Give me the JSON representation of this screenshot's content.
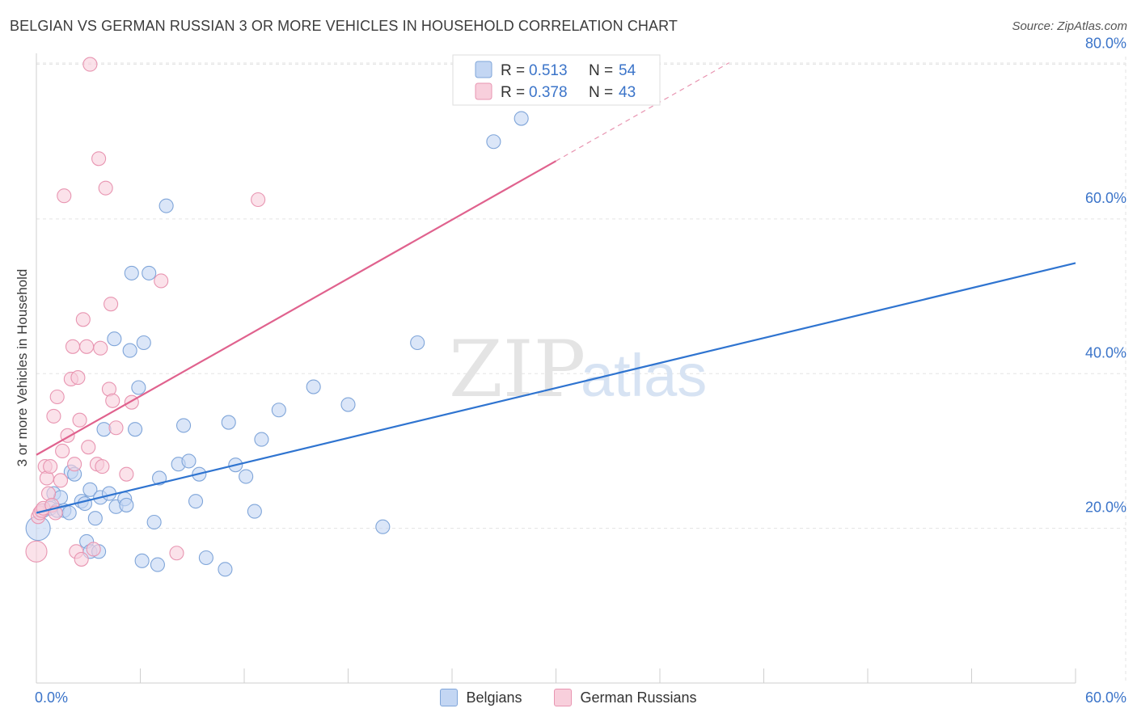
{
  "title": "BELGIAN VS GERMAN RUSSIAN 3 OR MORE VEHICLES IN HOUSEHOLD CORRELATION CHART",
  "source": "Source: ZipAtlas.com",
  "watermark": {
    "zip": "ZIP",
    "atlas": "atlas"
  },
  "colors": {
    "belgians_fill": "#c3d6f3",
    "belgians_stroke": "#7fa5d9",
    "belgians_line": "#2f74d0",
    "german_fill": "#f8cfdc",
    "german_stroke": "#e895b1",
    "german_line": "#e0628e",
    "axis_text": "#3b74c9",
    "grid": "#e3e3e3"
  },
  "legend": [
    {
      "key": "belgians",
      "r_label": "R =",
      "r_value": "0.513",
      "n_label": "N =",
      "n_value": "54"
    },
    {
      "key": "german",
      "r_label": "R =",
      "r_value": "0.378",
      "n_label": "N =",
      "n_value": "43"
    }
  ],
  "chart_data": {
    "type": "scatter",
    "title": "BELGIAN VS GERMAN RUSSIAN 3 OR MORE VEHICLES IN HOUSEHOLD CORRELATION CHART",
    "xlabel": "",
    "ylabel": "3 or more Vehicles in Household",
    "xlim": [
      0,
      60
    ],
    "ylim": [
      0,
      81
    ],
    "x_tick_labels": [
      "0.0%",
      "60.0%"
    ],
    "y_ticks": [
      20,
      40,
      60,
      80
    ],
    "y_tick_labels": [
      "20.0%",
      "40.0%",
      "60.0%",
      "80.0%"
    ],
    "legend_labels": [
      "Belgians",
      "German Russians"
    ],
    "series": [
      {
        "name": "Belgians",
        "points": [
          [
            0.1,
            20.0
          ],
          [
            0.4,
            22.3
          ],
          [
            0.8,
            22.6
          ],
          [
            1.0,
            24.5
          ],
          [
            1.2,
            22.3
          ],
          [
            1.4,
            24.0
          ],
          [
            1.6,
            22.3
          ],
          [
            1.9,
            22.0
          ],
          [
            2.0,
            27.3
          ],
          [
            2.2,
            27.0
          ],
          [
            2.6,
            23.5
          ],
          [
            2.8,
            23.2
          ],
          [
            2.9,
            18.3
          ],
          [
            3.1,
            17.0
          ],
          [
            3.1,
            25.0
          ],
          [
            3.4,
            21.3
          ],
          [
            3.6,
            17.0
          ],
          [
            3.7,
            24.0
          ],
          [
            3.9,
            32.8
          ],
          [
            4.2,
            24.5
          ],
          [
            4.5,
            44.5
          ],
          [
            4.6,
            22.8
          ],
          [
            5.1,
            23.8
          ],
          [
            5.2,
            23.0
          ],
          [
            5.4,
            43.0
          ],
          [
            5.5,
            53.0
          ],
          [
            5.7,
            32.8
          ],
          [
            5.9,
            38.2
          ],
          [
            6.1,
            15.8
          ],
          [
            6.2,
            44.0
          ],
          [
            6.5,
            53.0
          ],
          [
            6.8,
            20.8
          ],
          [
            7.0,
            15.3
          ],
          [
            7.1,
            26.5
          ],
          [
            7.5,
            61.7
          ],
          [
            8.2,
            28.3
          ],
          [
            8.5,
            33.3
          ],
          [
            8.8,
            28.7
          ],
          [
            9.2,
            23.5
          ],
          [
            9.4,
            27.0
          ],
          [
            9.8,
            16.2
          ],
          [
            10.9,
            14.7
          ],
          [
            11.1,
            33.7
          ],
          [
            11.5,
            28.2
          ],
          [
            12.1,
            26.7
          ],
          [
            12.6,
            22.2
          ],
          [
            13.0,
            31.5
          ],
          [
            14.0,
            35.3
          ],
          [
            16.0,
            38.3
          ],
          [
            18.0,
            36.0
          ],
          [
            20.0,
            20.2
          ],
          [
            22.0,
            44.0
          ],
          [
            26.4,
            70.0
          ],
          [
            28.0,
            73.0
          ]
        ]
      },
      {
        "name": "German Russians",
        "points": [
          [
            0.0,
            17.0
          ],
          [
            0.1,
            21.5
          ],
          [
            0.2,
            22.0
          ],
          [
            0.3,
            22.3
          ],
          [
            0.4,
            22.6
          ],
          [
            0.5,
            28.0
          ],
          [
            0.6,
            26.5
          ],
          [
            0.7,
            24.5
          ],
          [
            0.8,
            28.0
          ],
          [
            0.9,
            23.0
          ],
          [
            1.0,
            34.5
          ],
          [
            1.1,
            22.0
          ],
          [
            1.2,
            37.0
          ],
          [
            1.4,
            26.2
          ],
          [
            1.5,
            30.0
          ],
          [
            1.6,
            63.0
          ],
          [
            1.8,
            32.0
          ],
          [
            2.0,
            39.3
          ],
          [
            2.1,
            43.5
          ],
          [
            2.2,
            28.3
          ],
          [
            2.3,
            17.0
          ],
          [
            2.4,
            39.5
          ],
          [
            2.5,
            34.0
          ],
          [
            2.6,
            16.0
          ],
          [
            2.7,
            47.0
          ],
          [
            2.9,
            43.5
          ],
          [
            3.0,
            30.5
          ],
          [
            3.1,
            80.0
          ],
          [
            3.3,
            17.3
          ],
          [
            3.5,
            28.3
          ],
          [
            3.6,
            67.8
          ],
          [
            3.7,
            43.3
          ],
          [
            3.8,
            28.0
          ],
          [
            4.0,
            64.0
          ],
          [
            4.2,
            38.0
          ],
          [
            4.3,
            49.0
          ],
          [
            4.4,
            36.5
          ],
          [
            4.6,
            33.0
          ],
          [
            5.2,
            27.0
          ],
          [
            5.5,
            36.3
          ],
          [
            7.2,
            52.0
          ],
          [
            8.1,
            16.8
          ],
          [
            12.8,
            62.5
          ]
        ]
      }
    ],
    "trend_lines": [
      {
        "series": "Belgians",
        "x": [
          0,
          60
        ],
        "y": [
          22.0,
          54.3
        ]
      },
      {
        "series": "German Russians",
        "x": [
          0,
          30
        ],
        "y": [
          29.5,
          67.5
        ],
        "dashed_extension_x": [
          30,
          40
        ],
        "dashed_extension_y": [
          67.5,
          80.2
        ]
      }
    ]
  }
}
